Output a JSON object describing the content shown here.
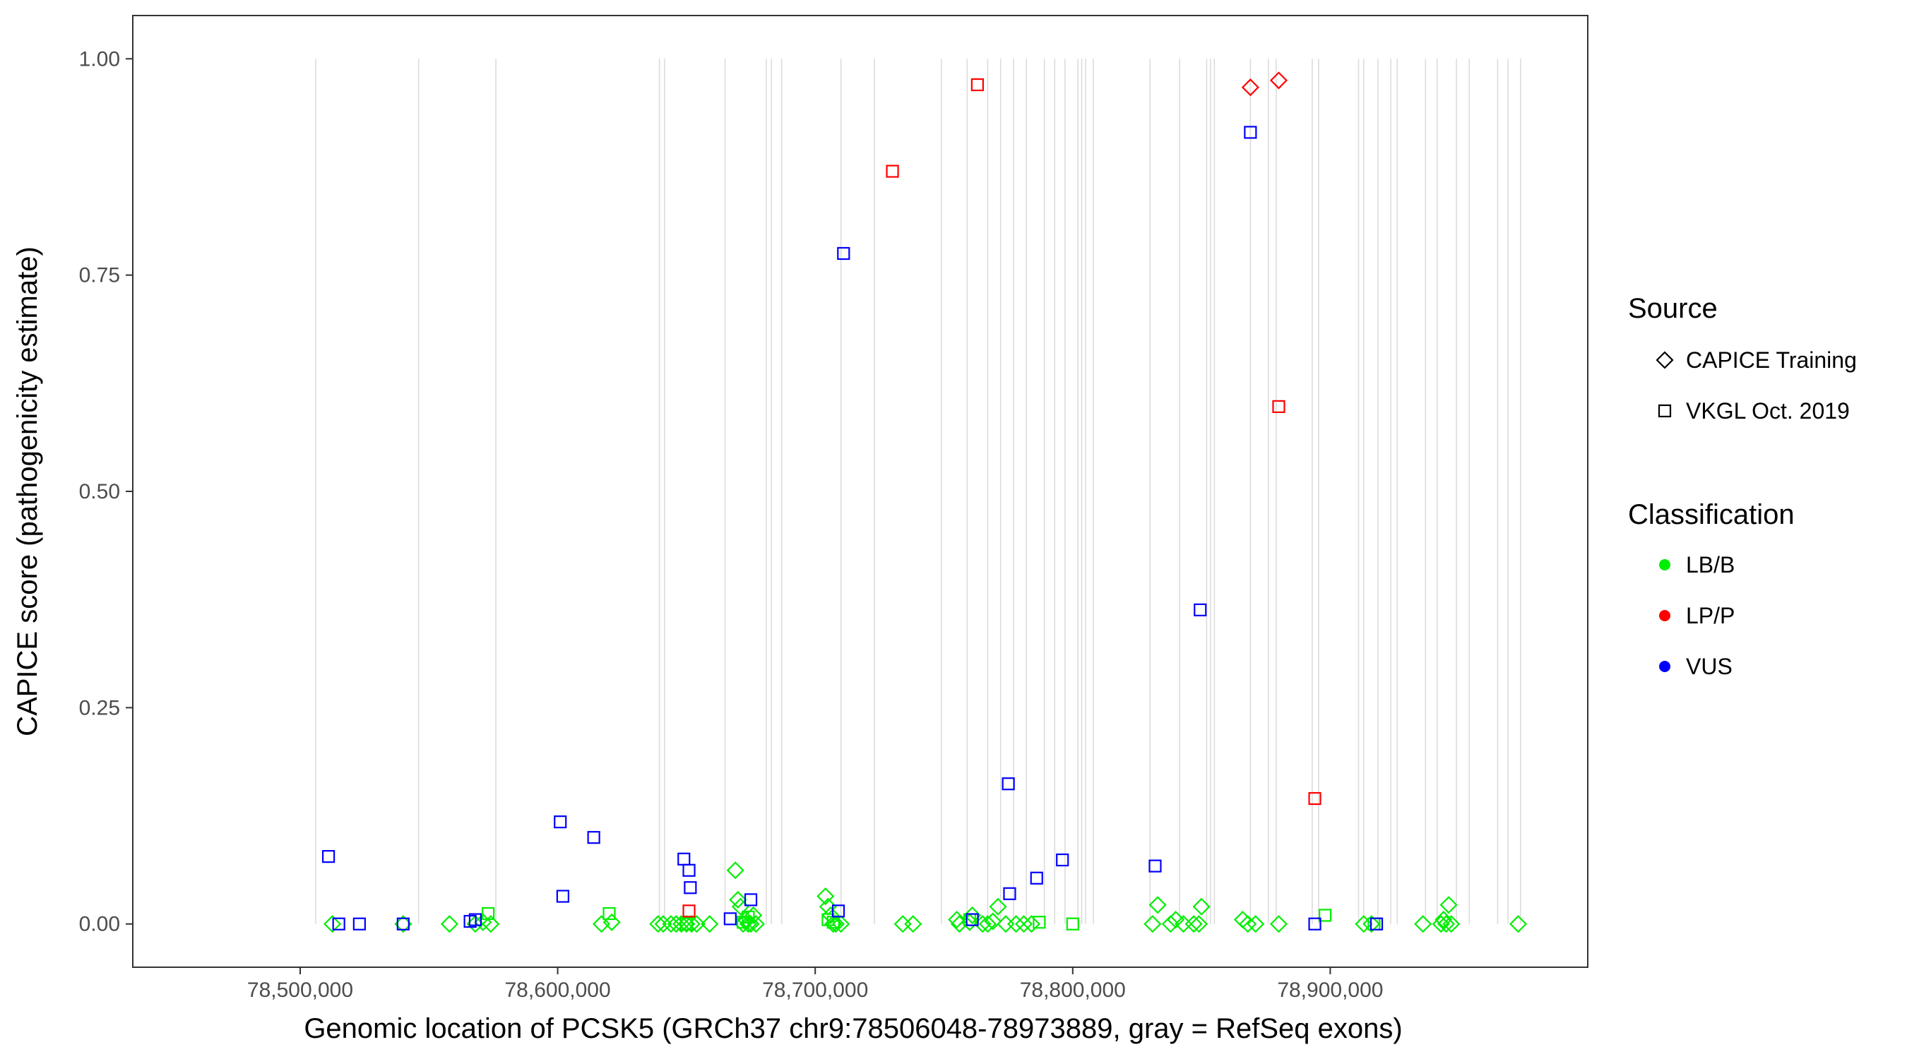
{
  "chart_data": {
    "type": "scatter",
    "xlabel": "Genomic location of PCSK5 (GRCh37 chr9:78506048-78973889, gray = RefSeq exons)",
    "ylabel": "CAPICE score (pathogenicity estimate)",
    "xlim": [
      78435000,
      79000000
    ],
    "ylim": [
      -0.05,
      1.05
    ],
    "x_ticks": [
      78500000,
      78600000,
      78700000,
      78800000,
      78900000
    ],
    "x_tick_labels": [
      "78,500,000",
      "78,600,000",
      "78,700,000",
      "78,800,000",
      "78,900,000"
    ],
    "y_ticks": [
      0,
      0.25,
      0.5,
      0.75,
      1.0
    ],
    "y_tick_labels": [
      "0.00",
      "0.25",
      "0.50",
      "0.75",
      "1.00"
    ],
    "grid": false,
    "exon_lines": [
      78506048,
      78546000,
      78576000,
      78639500,
      78641500,
      78665000,
      78681000,
      78683000,
      78687000,
      78710000,
      78723000,
      78749000,
      78759000,
      78767000,
      78772000,
      78777000,
      78782000,
      78789000,
      78793000,
      78797000,
      78802000,
      78803500,
      78805000,
      78808000,
      78830000,
      78841500,
      78852000,
      78853500,
      78855000,
      78869000,
      78876000,
      78879000,
      78893000,
      78895500,
      78911000,
      78913000,
      78918500,
      78923500,
      78926000,
      78937000,
      78941500,
      78949000,
      78954000,
      78965000,
      78969000,
      78973889
    ],
    "legend": {
      "source_title": "Source",
      "source_items": [
        {
          "label": "CAPICE Training",
          "shape": "diamond"
        },
        {
          "label": "VKGL Oct. 2019",
          "shape": "square"
        }
      ],
      "class_title": "Classification",
      "class_items": [
        {
          "label": "LB/B",
          "color": "#00ee00"
        },
        {
          "label": "LP/P",
          "color": "#ff0000"
        },
        {
          "label": "VUS",
          "color": "#0000ff"
        }
      ],
      "placement": "right"
    },
    "series": [
      {
        "name": "CAPICE Training",
        "classification": "LB/B",
        "shape": "diamond",
        "color": "#00ee00",
        "points": [
          [
            78512500,
            0
          ],
          [
            78540000,
            0
          ],
          [
            78558000,
            0
          ],
          [
            78568000,
            0
          ],
          [
            78571000,
            0.002
          ],
          [
            78574000,
            0
          ],
          [
            78617000,
            0
          ],
          [
            78621000,
            0.002
          ],
          [
            78639000,
            0
          ],
          [
            78641000,
            0
          ],
          [
            78644000,
            0
          ],
          [
            78646000,
            0
          ],
          [
            78648000,
            0
          ],
          [
            78650000,
            0
          ],
          [
            78652000,
            0
          ],
          [
            78654000,
            0
          ],
          [
            78659000,
            0
          ],
          [
            78669000,
            0.062
          ],
          [
            78670000,
            0.028
          ],
          [
            78671000,
            0.02
          ],
          [
            78672000,
            0
          ],
          [
            78673000,
            0.005
          ],
          [
            78674000,
            0
          ],
          [
            78675000,
            0
          ],
          [
            78676000,
            0.01
          ],
          [
            78677000,
            0
          ],
          [
            78704000,
            0.032
          ],
          [
            78705000,
            0.02
          ],
          [
            78706000,
            0.01
          ],
          [
            78707000,
            0
          ],
          [
            78708000,
            0
          ],
          [
            78710000,
            0
          ],
          [
            78734000,
            0
          ],
          [
            78738000,
            0
          ],
          [
            78755000,
            0.005
          ],
          [
            78756000,
            0
          ],
          [
            78760000,
            0.002
          ],
          [
            78761000,
            0.01
          ],
          [
            78765000,
            0
          ],
          [
            78767000,
            0
          ],
          [
            78769000,
            0.003
          ],
          [
            78771000,
            0.02
          ],
          [
            78774000,
            0
          ],
          [
            78778000,
            0
          ],
          [
            78781000,
            0
          ],
          [
            78784000,
            0
          ],
          [
            78831000,
            0
          ],
          [
            78833000,
            0.022
          ],
          [
            78838000,
            0
          ],
          [
            78840000,
            0.005
          ],
          [
            78843000,
            0
          ],
          [
            78847000,
            0
          ],
          [
            78849000,
            0
          ],
          [
            78850000,
            0.02
          ],
          [
            78866000,
            0.005
          ],
          [
            78868000,
            0
          ],
          [
            78871000,
            0
          ],
          [
            78880000,
            0
          ],
          [
            78913000,
            0
          ],
          [
            78916000,
            0
          ],
          [
            78936000,
            0
          ],
          [
            78943000,
            0
          ],
          [
            78944000,
            0.005
          ],
          [
            78945000,
            0
          ],
          [
            78946000,
            0.022
          ],
          [
            78947000,
            0
          ],
          [
            78973000,
            0
          ]
        ]
      },
      {
        "name": "CAPICE Training",
        "classification": "LP/P",
        "shape": "diamond",
        "color": "#ff0000",
        "points": [
          [
            78869000,
            0.967
          ],
          [
            78880000,
            0.975
          ]
        ]
      },
      {
        "name": "VKGL Oct. 2019",
        "classification": "LB/B",
        "shape": "square",
        "color": "#00ee00",
        "points": [
          [
            78573000,
            0.012
          ],
          [
            78620000,
            0.012
          ],
          [
            78650000,
            0
          ],
          [
            78672000,
            0.002
          ],
          [
            78674000,
            0.008
          ],
          [
            78705000,
            0.005
          ],
          [
            78707000,
            0.002
          ],
          [
            78760000,
            0.005
          ],
          [
            78787000,
            0.002
          ],
          [
            78800000,
            0
          ],
          [
            78898000,
            0.01
          ],
          [
            78917000,
            0
          ]
        ]
      },
      {
        "name": "VKGL Oct. 2019",
        "classification": "LP/P",
        "shape": "square",
        "color": "#ff0000",
        "points": [
          [
            78763000,
            0.97
          ],
          [
            78730000,
            0.87
          ],
          [
            78880000,
            0.598
          ],
          [
            78894000,
            0.145
          ],
          [
            78651000,
            0.015
          ]
        ]
      },
      {
        "name": "VKGL Oct. 2019",
        "classification": "VUS",
        "shape": "square",
        "color": "#0000ff",
        "points": [
          [
            78511000,
            0.078
          ],
          [
            78515000,
            0
          ],
          [
            78523000,
            0
          ],
          [
            78540000,
            0
          ],
          [
            78566000,
            0.003
          ],
          [
            78568000,
            0.005
          ],
          [
            78601000,
            0.118
          ],
          [
            78602000,
            0.032
          ],
          [
            78614000,
            0.1
          ],
          [
            78649000,
            0.075
          ],
          [
            78651000,
            0.062
          ],
          [
            78651500,
            0.042
          ],
          [
            78667000,
            0.006
          ],
          [
            78675000,
            0.028
          ],
          [
            78709000,
            0.015
          ],
          [
            78711000,
            0.775
          ],
          [
            78761000,
            0.005
          ],
          [
            78775000,
            0.162
          ],
          [
            78775500,
            0.035
          ],
          [
            78786000,
            0.053
          ],
          [
            78796000,
            0.074
          ],
          [
            78832000,
            0.067
          ],
          [
            78849500,
            0.363
          ],
          [
            78869000,
            0.915
          ],
          [
            78894000,
            0
          ],
          [
            78918000,
            0
          ]
        ]
      }
    ]
  }
}
